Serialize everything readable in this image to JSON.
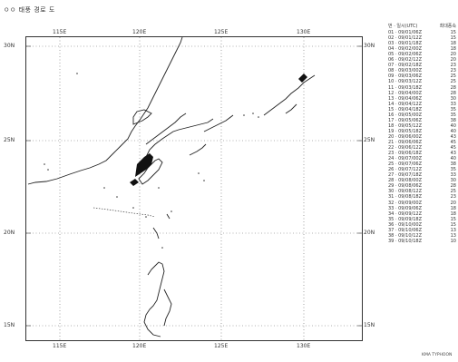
{
  "title": "ㅇㅇ 태풍 경로 도",
  "map": {
    "top_lon": [
      "115E",
      "120E",
      "125E",
      "130E"
    ],
    "bottom_lon": [
      "115E",
      "120E",
      "125E",
      "130E"
    ],
    "left_lat": [
      "30N",
      "25N",
      "20N",
      "15N"
    ],
    "right_lat": [
      "30N",
      "25N",
      "20N",
      "15N"
    ]
  },
  "legend": {
    "header_left": "번 · 일시(UTC)",
    "header_right": "최대풍속",
    "rows": [
      [
        "01 · 09/01/06Z",
        "15"
      ],
      [
        "02 · 09/01/12Z",
        "15"
      ],
      [
        "03 · 09/01/18Z",
        "18"
      ],
      [
        "04 · 09/02/00Z",
        "18"
      ],
      [
        "05 · 09/02/06Z",
        "20"
      ],
      [
        "06 · 09/02/12Z",
        "20"
      ],
      [
        "07 · 09/02/18Z",
        "23"
      ],
      [
        "08 · 09/03/00Z",
        "23"
      ],
      [
        "09 · 09/03/06Z",
        "25"
      ],
      [
        "10 · 09/03/12Z",
        "25"
      ],
      [
        "11 · 09/03/18Z",
        "28"
      ],
      [
        "12 · 09/04/00Z",
        "28"
      ],
      [
        "13 · 09/04/06Z",
        "30"
      ],
      [
        "14 · 09/04/12Z",
        "33"
      ],
      [
        "15 · 09/04/18Z",
        "35"
      ],
      [
        "16 · 09/05/00Z",
        "35"
      ],
      [
        "17 · 09/05/06Z",
        "38"
      ],
      [
        "18 · 09/05/12Z",
        "40"
      ],
      [
        "19 · 09/05/18Z",
        "40"
      ],
      [
        "20 · 09/06/00Z",
        "43"
      ],
      [
        "21 · 09/06/06Z",
        "45"
      ],
      [
        "22 · 09/06/12Z",
        "45"
      ],
      [
        "23 · 09/06/18Z",
        "43"
      ],
      [
        "24 · 09/07/00Z",
        "40"
      ],
      [
        "25 · 09/07/06Z",
        "38"
      ],
      [
        "26 · 09/07/12Z",
        "35"
      ],
      [
        "27 · 09/07/18Z",
        "33"
      ],
      [
        "28 · 09/08/00Z",
        "30"
      ],
      [
        "29 · 09/08/06Z",
        "28"
      ],
      [
        "30 · 09/08/12Z",
        "25"
      ],
      [
        "31 · 09/08/18Z",
        "23"
      ],
      [
        "32 · 09/09/00Z",
        "20"
      ],
      [
        "33 · 09/09/06Z",
        "18"
      ],
      [
        "34 · 09/09/12Z",
        "18"
      ],
      [
        "35 · 09/09/18Z",
        "15"
      ],
      [
        "36 · 09/10/00Z",
        "15"
      ],
      [
        "37 · 09/10/06Z",
        "13"
      ],
      [
        "38 · 09/10/12Z",
        "13"
      ],
      [
        "39 · 09/10/18Z",
        "10"
      ]
    ]
  },
  "footer": "KMA TYPHOON"
}
